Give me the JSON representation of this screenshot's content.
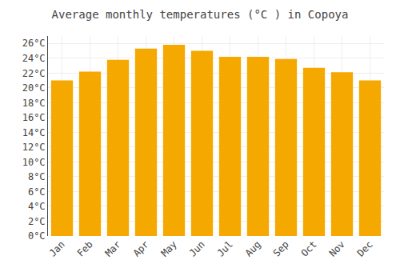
{
  "chart_data": {
    "type": "bar",
    "title": "Average monthly temperatures (°C ) in Copoya",
    "categories": [
      "Jan",
      "Feb",
      "Mar",
      "Apr",
      "May",
      "Jun",
      "Jul",
      "Aug",
      "Sep",
      "Oct",
      "Nov",
      "Dec"
    ],
    "values": [
      21.0,
      22.2,
      23.8,
      25.3,
      25.8,
      25.0,
      24.2,
      24.2,
      23.9,
      22.7,
      22.1,
      21.0
    ],
    "color": "#F5A800",
    "ylim": [
      0,
      27
    ],
    "yticks": [
      {
        "value": 0,
        "label": "0°C"
      },
      {
        "value": 2,
        "label": "2°C"
      },
      {
        "value": 4,
        "label": "4°C"
      },
      {
        "value": 6,
        "label": "6°C"
      },
      {
        "value": 8,
        "label": "8°C"
      },
      {
        "value": 10,
        "label": "10°C"
      },
      {
        "value": 12,
        "label": "12°C"
      },
      {
        "value": 14,
        "label": "14°C"
      },
      {
        "value": 16,
        "label": "16°C"
      },
      {
        "value": 18,
        "label": "18°C"
      },
      {
        "value": 20,
        "label": "20°C"
      },
      {
        "value": 22,
        "label": "22°C"
      },
      {
        "value": 24,
        "label": "24°C"
      },
      {
        "value": 26,
        "label": "26°C"
      }
    ],
    "grid": true
  }
}
